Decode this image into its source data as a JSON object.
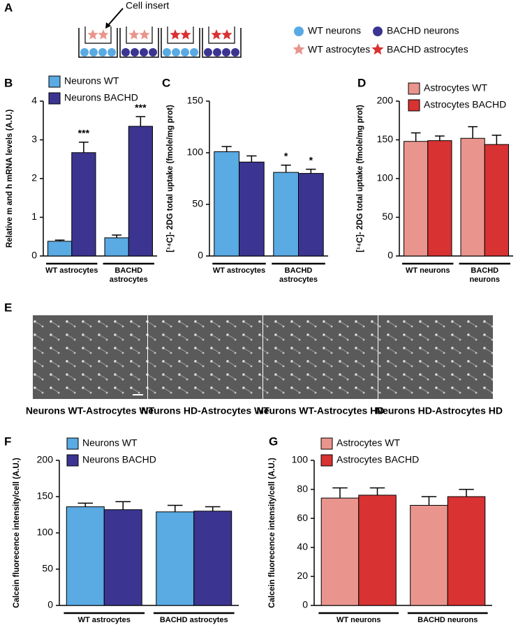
{
  "panel_labels": [
    "A",
    "B",
    "C",
    "D",
    "E",
    "F",
    "G"
  ],
  "diagram": {
    "pointer": "Cell insert",
    "legend": [
      "WT neurons",
      "BACHD neurons",
      "WT astrocytes",
      "BACHD astrocytes"
    ]
  },
  "images": {
    "captions": [
      "Neurons WT-Astrocytes WT",
      "Neurons HD-Astrocytes WT",
      "Neurons WT-Astrocytes HD",
      "Neurons HD-Astrocytes HD"
    ]
  },
  "chart_data": [
    {
      "type": "bar",
      "ylabel": "Relative m and h mRNA levels (A.U.)",
      "categories": [
        "WT astrocytes",
        "BACHD astrocytes"
      ],
      "ylim": [
        0,
        4
      ],
      "yticks": [
        0,
        1,
        2,
        3,
        4
      ],
      "series": [
        {
          "name": "Neurons WT",
          "color": "#5aaae3",
          "values": [
            0.38,
            0.47
          ],
          "errors": [
            0.03,
            0.07
          ]
        },
        {
          "name": "Neurons BACHD",
          "color": "#3b3591",
          "values": [
            2.67,
            3.35
          ],
          "errors": [
            0.27,
            0.25
          ],
          "significance": [
            "***",
            "***"
          ]
        }
      ]
    },
    {
      "type": "bar",
      "ylabel": "[¹⁴C]- 2DG total uptake (fmole/mg prot)",
      "categories": [
        "WT astrocytes",
        "BACHD astrocytes"
      ],
      "ylim": [
        0,
        150
      ],
      "yticks": [
        0,
        50,
        100,
        150
      ],
      "series": [
        {
          "color": "#5aaae3",
          "values": [
            101,
            81
          ],
          "errors": [
            5,
            7
          ],
          "significance": [
            null,
            "*"
          ]
        },
        {
          "color": "#3b3591",
          "values": [
            91,
            80
          ],
          "errors": [
            6,
            4
          ],
          "significance": [
            null,
            "*"
          ]
        }
      ]
    },
    {
      "type": "bar",
      "ylabel": "[¹⁴C]- 2DG total uptake (fmole/mg prot)",
      "categories": [
        "WT neurons",
        "BACHD neurons"
      ],
      "ylim": [
        0,
        200
      ],
      "yticks": [
        0,
        50,
        100,
        150,
        200
      ],
      "series": [
        {
          "name": "Astrocytes WT",
          "color": "#e9958d",
          "values": [
            148,
            152
          ],
          "errors": [
            11,
            15
          ]
        },
        {
          "name": "Astrocytes BACHD",
          "color": "#d83232",
          "values": [
            149,
            144
          ],
          "errors": [
            6,
            12
          ]
        }
      ]
    },
    {
      "type": "bar",
      "ylabel": "Calcein fluorecence intensity/cell (A.U.)",
      "categories": [
        "WT astrocytes",
        "BACHD astrocytes"
      ],
      "ylim": [
        0,
        200
      ],
      "yticks": [
        0,
        50,
        100,
        150,
        200
      ],
      "series": [
        {
          "name": "Neurons WT",
          "color": "#5aaae3",
          "values": [
            136,
            129
          ],
          "errors": [
            5,
            9
          ]
        },
        {
          "name": "Neurons BACHD",
          "color": "#3b3591",
          "values": [
            132,
            130
          ],
          "errors": [
            11,
            6
          ]
        }
      ]
    },
    {
      "type": "bar",
      "ylabel": "Calcein fluorecence intensity/cell (A.U.)",
      "categories": [
        "WT neurons",
        "BACHD neurons"
      ],
      "ylim": [
        0,
        100
      ],
      "yticks": [
        0,
        20,
        40,
        60,
        80,
        100
      ],
      "series": [
        {
          "name": "Astrocytes WT",
          "color": "#e9958d",
          "values": [
            74,
            69
          ],
          "errors": [
            7,
            6
          ]
        },
        {
          "name": "Astrocytes BACHD",
          "color": "#d83232",
          "values": [
            76,
            75
          ],
          "errors": [
            5,
            5
          ]
        }
      ]
    }
  ]
}
